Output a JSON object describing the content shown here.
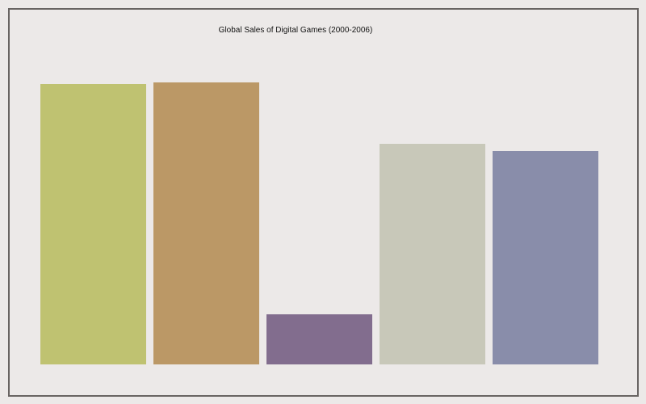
{
  "chart_data": {
    "type": "bar",
    "title": "Global Sales of Digital Games (2000-2006)",
    "xlabel": "",
    "ylabel": "",
    "categories": [
      "",
      "",
      "",
      "",
      ""
    ],
    "values": [
      347,
      349,
      62,
      273,
      264
    ],
    "ylim": [
      0,
      350
    ],
    "grid": false,
    "legend": "none",
    "colors": [
      "#bfc271",
      "#bb9866",
      "#826d8e",
      "#c8c8b9",
      "#898daa"
    ]
  }
}
